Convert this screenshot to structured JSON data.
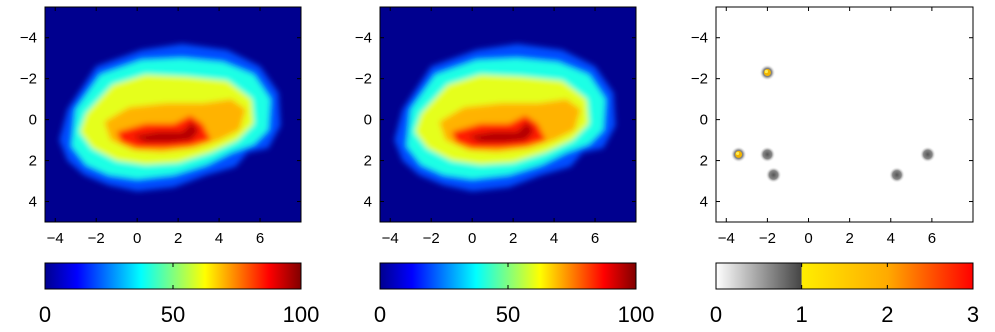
{
  "chart_data": [
    {
      "type": "heatmap",
      "title": "",
      "xlabel": "",
      "ylabel": "",
      "xlim": [
        -4.5,
        8
      ],
      "ylim": [
        -5.5,
        5
      ],
      "y_reversed": true,
      "xticks": [
        "-4",
        "-2",
        "0",
        "2",
        "4",
        "6"
      ],
      "yticks": [
        "-4",
        "-2",
        "0",
        "2",
        "4"
      ],
      "colormap": "jet",
      "background_color": "#00008f",
      "colorbar": {
        "min": 0,
        "max": 100,
        "ticks": [
          "0",
          "50",
          "100"
        ]
      },
      "contours": [
        {
          "level": 20,
          "points": [
            [
              -3.4,
              -0.5
            ],
            [
              -2,
              -2.6
            ],
            [
              0.2,
              -3.4
            ],
            [
              2.2,
              -3.7
            ],
            [
              4.4,
              -3.4
            ],
            [
              6,
              -2.6
            ],
            [
              6.9,
              -1.3
            ],
            [
              7,
              0.3
            ],
            [
              6.4,
              1.4
            ],
            [
              5.4,
              1.6
            ],
            [
              4.8,
              2.3
            ],
            [
              3.4,
              2.7
            ],
            [
              1.8,
              3.3
            ],
            [
              0,
              3.5
            ],
            [
              -1.4,
              3.2
            ],
            [
              -2.6,
              2.7
            ],
            [
              -3.4,
              2
            ],
            [
              -3.8,
              1
            ]
          ]
        },
        {
          "level": 40,
          "points": [
            [
              -3,
              -0.5
            ],
            [
              -1.8,
              -2.2
            ],
            [
              0.2,
              -2.9
            ],
            [
              2.2,
              -3
            ],
            [
              4.2,
              -2.8
            ],
            [
              5.7,
              -2.2
            ],
            [
              6.5,
              -1
            ],
            [
              6.4,
              0.5
            ],
            [
              5.7,
              1.2
            ],
            [
              4.6,
              1.6
            ],
            [
              3.4,
              2.2
            ],
            [
              1.8,
              2.7
            ],
            [
              0,
              2.9
            ],
            [
              -1.4,
              2.7
            ],
            [
              -2.5,
              2.2
            ],
            [
              -3.2,
              1.3
            ]
          ]
        },
        {
          "level": 60,
          "points": [
            [
              -2.5,
              -0.3
            ],
            [
              -1.2,
              -1.7
            ],
            [
              0.4,
              -2.2
            ],
            [
              2.4,
              -2.1
            ],
            [
              4.4,
              -1.9
            ],
            [
              5.6,
              -1
            ],
            [
              5.7,
              0.2
            ],
            [
              4.9,
              1
            ],
            [
              3.6,
              1.6
            ],
            [
              2,
              2.1
            ],
            [
              0.4,
              2.2
            ],
            [
              -1,
              2
            ],
            [
              -2.2,
              1.4
            ],
            [
              -2.8,
              0.6
            ]
          ]
        },
        {
          "level": 70,
          "points": [
            [
              -1.6,
              0.1
            ],
            [
              -0.4,
              -0.6
            ],
            [
              1.4,
              -0.8
            ],
            [
              3.2,
              -0.8
            ],
            [
              4.6,
              -1
            ],
            [
              5.3,
              -0.5
            ],
            [
              5,
              0.5
            ],
            [
              4,
              1
            ],
            [
              2.8,
              1.4
            ],
            [
              1.2,
              1.6
            ],
            [
              -0.2,
              1.5
            ],
            [
              -1.3,
              1
            ]
          ]
        },
        {
          "level": 85,
          "points": [
            [
              -1,
              0.6
            ],
            [
              0.4,
              0.2
            ],
            [
              1.8,
              0.2
            ],
            [
              2.6,
              -0.2
            ],
            [
              3.2,
              0.2
            ],
            [
              3.6,
              1
            ],
            [
              2.6,
              1.3
            ],
            [
              1.4,
              1.4
            ],
            [
              0,
              1.4
            ],
            [
              -0.8,
              1.1
            ]
          ]
        },
        {
          "level": 95,
          "points": [
            [
              -0.2,
              0.8
            ],
            [
              1,
              0.6
            ],
            [
              2.2,
              0.6
            ],
            [
              2.7,
              0.1
            ],
            [
              3,
              0.6
            ],
            [
              2.6,
              1
            ],
            [
              1.6,
              1.1
            ],
            [
              0.4,
              1.1
            ]
          ]
        }
      ]
    },
    {
      "type": "heatmap",
      "title": "",
      "xlabel": "",
      "ylabel": "",
      "xlim": [
        -4.5,
        8
      ],
      "ylim": [
        -5.5,
        5
      ],
      "y_reversed": true,
      "xticks": [
        "-4",
        "-2",
        "0",
        "2",
        "4",
        "6"
      ],
      "yticks": [
        "-4",
        "-2",
        "0",
        "2",
        "4"
      ],
      "colormap": "jet",
      "background_color": "#00008f",
      "colorbar": {
        "min": 0,
        "max": 100,
        "ticks": [
          "0",
          "50",
          "100"
        ]
      },
      "contours": [
        {
          "level": 20,
          "points": [
            [
              -3.4,
              -0.5
            ],
            [
              -2,
              -2.6
            ],
            [
              0.2,
              -3.4
            ],
            [
              2.2,
              -3.7
            ],
            [
              4.4,
              -3.4
            ],
            [
              6,
              -2.6
            ],
            [
              6.9,
              -1.3
            ],
            [
              7,
              0.3
            ],
            [
              6.4,
              1.4
            ],
            [
              5.4,
              1.6
            ],
            [
              4.8,
              2.3
            ],
            [
              3.4,
              2.7
            ],
            [
              1.8,
              3.3
            ],
            [
              0,
              3.5
            ],
            [
              -1.4,
              3.2
            ],
            [
              -2.6,
              2.7
            ],
            [
              -3.4,
              2
            ],
            [
              -3.8,
              1
            ]
          ]
        },
        {
          "level": 40,
          "points": [
            [
              -3,
              -0.5
            ],
            [
              -1.8,
              -2.2
            ],
            [
              0.2,
              -2.9
            ],
            [
              2.2,
              -3
            ],
            [
              4.2,
              -2.8
            ],
            [
              5.7,
              -2.2
            ],
            [
              6.5,
              -1
            ],
            [
              6.4,
              0.5
            ],
            [
              5.7,
              1.2
            ],
            [
              4.6,
              1.6
            ],
            [
              3.4,
              2.2
            ],
            [
              1.8,
              2.7
            ],
            [
              0,
              2.9
            ],
            [
              -1.4,
              2.7
            ],
            [
              -2.5,
              2.2
            ],
            [
              -3.2,
              1.3
            ]
          ]
        },
        {
          "level": 60,
          "points": [
            [
              -2.5,
              -0.3
            ],
            [
              -1.2,
              -1.7
            ],
            [
              0.4,
              -2.2
            ],
            [
              2.4,
              -2.1
            ],
            [
              4.4,
              -1.9
            ],
            [
              5.6,
              -1
            ],
            [
              5.7,
              0.2
            ],
            [
              4.9,
              1
            ],
            [
              3.6,
              1.6
            ],
            [
              2,
              2.1
            ],
            [
              0.4,
              2.2
            ],
            [
              -1,
              2
            ],
            [
              -2.2,
              1.4
            ],
            [
              -2.8,
              0.6
            ]
          ]
        },
        {
          "level": 70,
          "points": [
            [
              -1.6,
              0.1
            ],
            [
              -0.4,
              -0.6
            ],
            [
              1.4,
              -0.8
            ],
            [
              3.2,
              -0.8
            ],
            [
              4.6,
              -1
            ],
            [
              5.3,
              -0.5
            ],
            [
              5,
              0.5
            ],
            [
              4,
              1
            ],
            [
              2.8,
              1.4
            ],
            [
              1.2,
              1.6
            ],
            [
              -0.2,
              1.5
            ],
            [
              -1.3,
              1
            ]
          ]
        },
        {
          "level": 85,
          "points": [
            [
              -1,
              0.6
            ],
            [
              0.4,
              0.2
            ],
            [
              1.8,
              0.2
            ],
            [
              2.6,
              -0.2
            ],
            [
              3.2,
              0.2
            ],
            [
              3.6,
              1
            ],
            [
              2.6,
              1.3
            ],
            [
              1.4,
              1.4
            ],
            [
              0,
              1.4
            ],
            [
              -0.8,
              1.1
            ]
          ]
        },
        {
          "level": 95,
          "points": [
            [
              -0.2,
              0.8
            ],
            [
              1,
              0.6
            ],
            [
              2.2,
              0.6
            ],
            [
              2.7,
              0.1
            ],
            [
              3,
              0.6
            ],
            [
              2.6,
              1
            ],
            [
              1.6,
              1.1
            ],
            [
              0.4,
              1.1
            ]
          ]
        }
      ]
    },
    {
      "type": "heatmap",
      "title": "",
      "xlabel": "",
      "ylabel": "",
      "xlim": [
        -4.5,
        8
      ],
      "ylim": [
        -5.5,
        5
      ],
      "y_reversed": true,
      "xticks": [
        "-4",
        "-2",
        "0",
        "2",
        "4",
        "6"
      ],
      "yticks": [
        "-4",
        "-2",
        "0",
        "2",
        "4"
      ],
      "colormap": "gray-to-hot",
      "background_color": "#ffffff",
      "colorbar": {
        "min": 0,
        "max": 3,
        "ticks": [
          "0",
          "1",
          "2",
          "3"
        ]
      },
      "peaks": [
        {
          "x": -2,
          "y": -2.3,
          "value": 1.3
        },
        {
          "x": -3.4,
          "y": 1.7,
          "value": 1.3
        },
        {
          "x": -2,
          "y": 1.7,
          "value": 0.7
        },
        {
          "x": -1.7,
          "y": 2.7,
          "value": 0.7
        },
        {
          "x": 4.3,
          "y": 2.7,
          "value": 0.7
        },
        {
          "x": 5.8,
          "y": 1.7,
          "value": 0.7
        }
      ]
    }
  ]
}
